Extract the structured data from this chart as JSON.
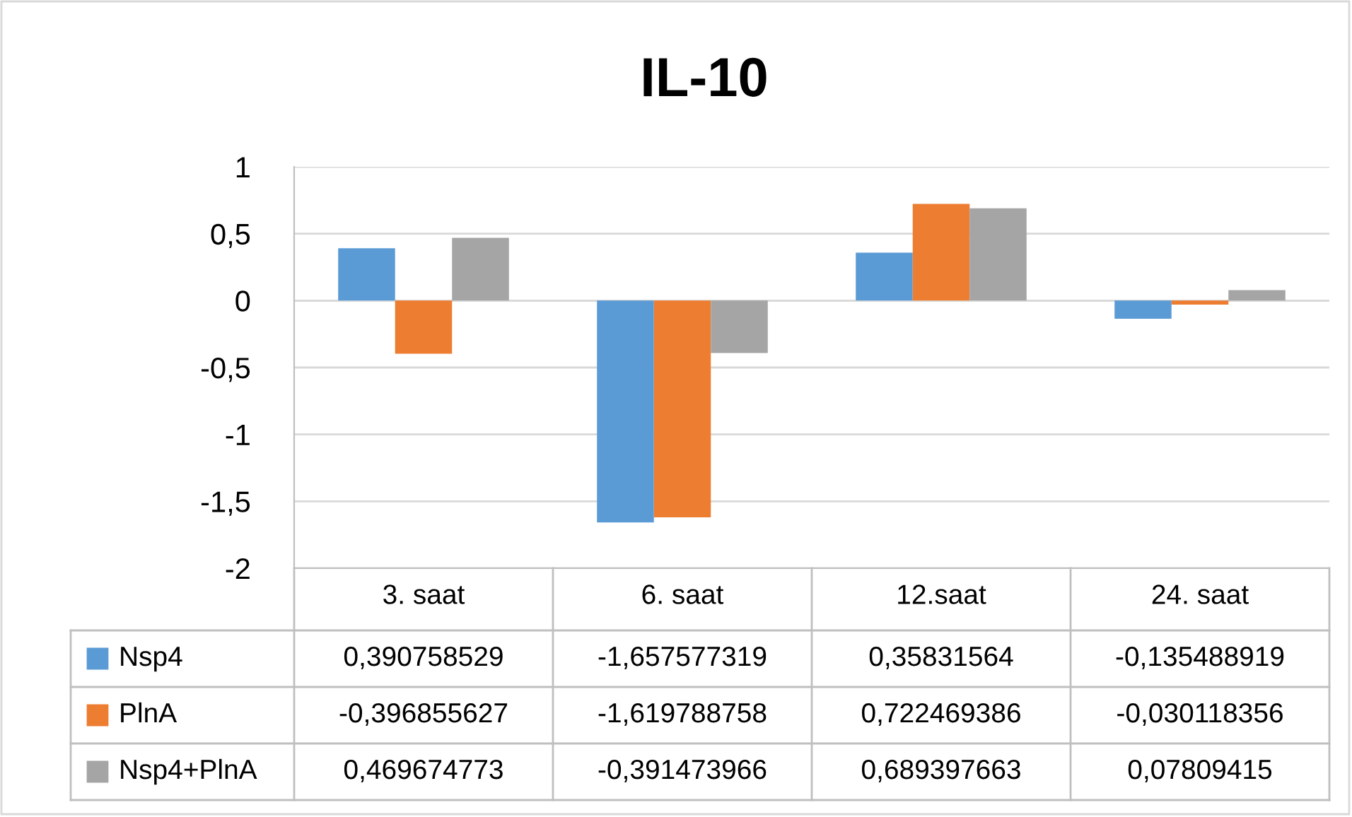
{
  "chart_data": {
    "type": "bar",
    "title": "IL-10",
    "categories": [
      "3. saat",
      "6. saat",
      "12.saat",
      "24. saat"
    ],
    "series": [
      {
        "name": "Nsp4",
        "color": "#5b9bd5",
        "values": [
          0.390758529,
          -1.657577319,
          0.35831564,
          -0.135488919
        ],
        "value_labels": [
          "0,390758529",
          "-1,657577319",
          "0,35831564",
          "-0,135488919"
        ]
      },
      {
        "name": "PlnA",
        "color": "#ed7d31",
        "values": [
          -0.396855627,
          -1.619788758,
          0.722469386,
          -0.030118356
        ],
        "value_labels": [
          "-0,396855627",
          "-1,619788758",
          "0,722469386",
          "-0,030118356"
        ]
      },
      {
        "name": "Nsp4+PlnA",
        "color": "#a5a5a5",
        "values": [
          0.469674773,
          -0.391473966,
          0.689397663,
          0.07809415
        ],
        "value_labels": [
          "0,469674773",
          "-0,391473966",
          "0,689397663",
          "0,07809415"
        ]
      }
    ],
    "ylim": [
      -2,
      1
    ],
    "yticks": [
      {
        "value": -2,
        "label": "-2"
      },
      {
        "value": -1.5,
        "label": "-1,5"
      },
      {
        "value": -1,
        "label": "-1"
      },
      {
        "value": -0.5,
        "label": "-0,5"
      },
      {
        "value": 0,
        "label": "0"
      },
      {
        "value": 0.5,
        "label": "0,5"
      },
      {
        "value": 1,
        "label": "1"
      }
    ],
    "grid": "y",
    "legend": "bottom"
  }
}
